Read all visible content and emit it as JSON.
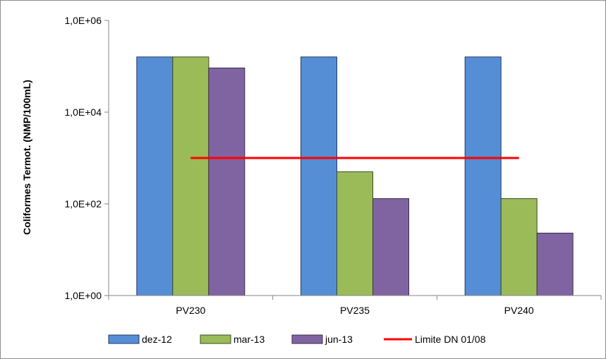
{
  "chart_data": {
    "type": "bar",
    "scale": "log",
    "categories": [
      "PV230",
      "PV235",
      "PV240"
    ],
    "series": [
      {
        "name": "dez-12",
        "values": [
          160000,
          160000,
          160000
        ],
        "color": "#558ed5",
        "border": "#1f3864"
      },
      {
        "name": "mar-13",
        "values": [
          160000,
          500,
          130
        ],
        "color": "#9bbb59",
        "border": "#3a4d20"
      },
      {
        "name": "jun-13",
        "values": [
          92000,
          130,
          23
        ],
        "color": "#8064a2",
        "border": "#3b2e4c"
      }
    ],
    "reference_line": {
      "name": "Limite DN 01/08",
      "value": 1000,
      "color": "#ff0000"
    },
    "ylabel": "Coliformes Termot. (NMP/100mL)",
    "xlabel": "",
    "title": "",
    "ylim": [
      1,
      1000000
    ],
    "yticks": [
      {
        "value": 1,
        "label": "1,0E+00"
      },
      {
        "value": 100,
        "label": "1,0E+02"
      },
      {
        "value": 10000,
        "label": "1,0E+04"
      },
      {
        "value": 1000000,
        "label": "1,0E+06"
      }
    ],
    "grid": false,
    "legend_position": "bottom"
  }
}
